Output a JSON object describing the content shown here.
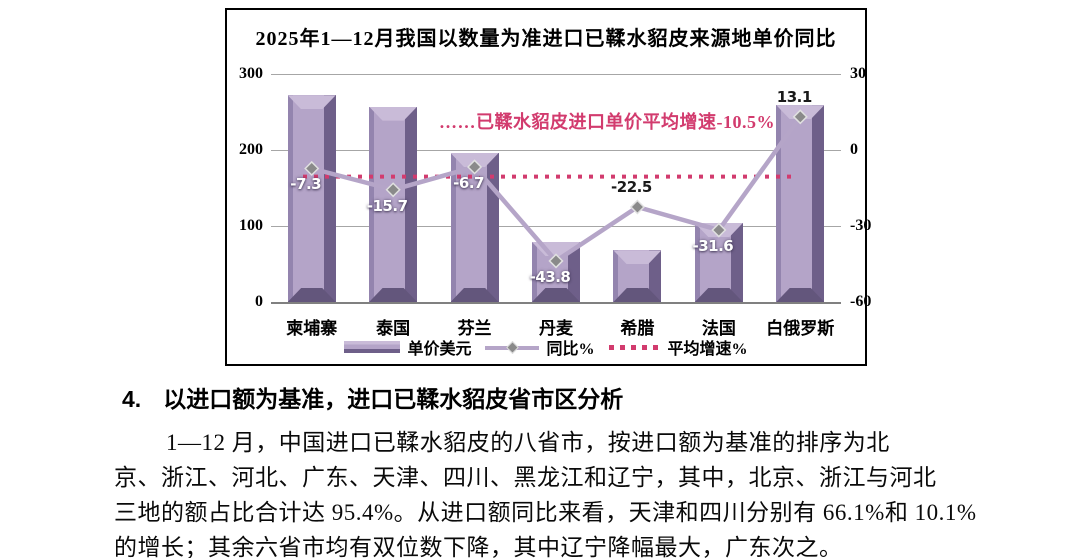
{
  "chart_data": {
    "type": "bar+line",
    "title": "2025年1—12月我国以数量为准进口已鞣水貂皮来源地单价同比",
    "categories": [
      "柬埔寨",
      "泰国",
      "芬兰",
      "丹麦",
      "希腊",
      "法国",
      "白俄罗斯"
    ],
    "series": [
      {
        "name": "单价美元",
        "type": "bar",
        "axis": "left",
        "values": [
          272,
          257,
          196,
          79,
          68,
          104,
          259
        ]
      },
      {
        "name": "同比%",
        "type": "line",
        "axis": "right",
        "values": [
          -7.3,
          -15.7,
          -6.7,
          -43.8,
          -22.5,
          -31.6,
          13.1
        ]
      },
      {
        "name": "平均增速%",
        "type": "dotted-line",
        "axis": "right",
        "value": -10.5
      }
    ],
    "point_labels": [
      "-7.3",
      "-15.7",
      "-6.7",
      "-43.8",
      "-22.5",
      "-31.6",
      "13.1"
    ],
    "label_side": [
      "below",
      "below",
      "below",
      "below",
      "above",
      "below",
      "above"
    ],
    "label_color": [
      "white",
      "white",
      "white",
      "white",
      "black",
      "white",
      "black"
    ],
    "annotation": "……已鞣水貂皮进口单价平均增速-10.5%",
    "left_axis": {
      "ticks": [
        0,
        100,
        200,
        300
      ],
      "range": [
        0,
        300
      ]
    },
    "right_axis": {
      "ticks": [
        -60,
        -30,
        0,
        30
      ],
      "range": [
        -60,
        30
      ]
    },
    "grid": true,
    "legend_position": "bottom",
    "colors": {
      "bar_face": "#b4a4c8",
      "bar_edge_left": "#9384ae",
      "bar_side_right": "#6e5f89",
      "bar_bevel_top": "#c9bbd8",
      "bar_bevel_bottom": "#63567c",
      "line": "#b5a5c8",
      "marker_fill": "#8a8a8a",
      "marker_stroke": "#e0e0e0",
      "average_line": "#d23b6e",
      "gridline": "#a6a6a6",
      "baseline": "#808080"
    }
  },
  "section": {
    "number": "4.",
    "heading": "以进口额为基准，进口已鞣水貂皮省市区分析",
    "lines": [
      "1—12 月，中国进口已鞣水貂皮的八省市，按进口额为基准的排序为北",
      "京、浙江、河北、广东、天津、四川、黑龙江和辽宁，其中，北京、浙江与河北",
      "三地的额占比合计达 95.4%。从进口额同比来看，天津和四川分别有 66.1%和 10.1%",
      "的增长；其余六省市均有双位数下降，其中辽宁降幅最大，广东次之。"
    ]
  }
}
